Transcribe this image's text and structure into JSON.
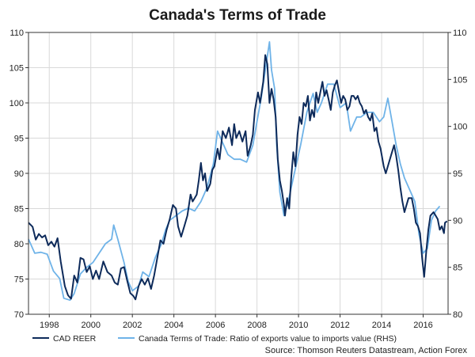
{
  "chart_data": {
    "type": "line",
    "title": "Canada's Terms of Trade",
    "source": "Source: Thomson Reuters Datastream, Action Forex",
    "xlim": [
      1997.0,
      2017.2
    ],
    "x_ticks": [
      "1998",
      "2000",
      "2002",
      "2004",
      "2006",
      "2008",
      "2010",
      "2012",
      "2014",
      "2016"
    ],
    "left_axis": {
      "ylim": [
        70,
        110
      ],
      "ticks": [
        "70",
        "75",
        "80",
        "85",
        "90",
        "95",
        "100",
        "105",
        "110"
      ]
    },
    "right_axis": {
      "ylim": [
        80,
        110
      ],
      "ticks": [
        "80",
        "85",
        "90",
        "95",
        "100",
        "105",
        "110"
      ]
    },
    "grid": "vertical and horizontal, light gray",
    "legend_position": "bottom",
    "colors": {
      "cad_reer": "#0d2a5a",
      "terms_of_trade": "#6fb3e8"
    },
    "series": [
      {
        "name": "CAD REER",
        "axis": "left",
        "points": [
          [
            1997.0,
            83.0
          ],
          [
            1997.2,
            82.4
          ],
          [
            1997.35,
            80.6
          ],
          [
            1997.5,
            81.4
          ],
          [
            1997.65,
            80.9
          ],
          [
            1997.8,
            81.2
          ],
          [
            1997.95,
            79.8
          ],
          [
            1998.1,
            80.3
          ],
          [
            1998.25,
            79.6
          ],
          [
            1998.4,
            80.8
          ],
          [
            1998.55,
            77.5
          ],
          [
            1998.75,
            74.0
          ],
          [
            1998.9,
            72.7
          ],
          [
            1999.05,
            72.2
          ],
          [
            1999.2,
            75.5
          ],
          [
            1999.35,
            74.5
          ],
          [
            1999.5,
            78.0
          ],
          [
            1999.65,
            77.8
          ],
          [
            1999.8,
            76.0
          ],
          [
            1999.95,
            76.8
          ],
          [
            2000.1,
            75.0
          ],
          [
            2000.25,
            76.2
          ],
          [
            2000.4,
            75.0
          ],
          [
            2000.6,
            77.5
          ],
          [
            2000.8,
            76.0
          ],
          [
            2001.0,
            75.5
          ],
          [
            2001.15,
            74.5
          ],
          [
            2001.3,
            74.2
          ],
          [
            2001.45,
            76.5
          ],
          [
            2001.6,
            76.7
          ],
          [
            2001.75,
            74.8
          ],
          [
            2001.9,
            73.0
          ],
          [
            2002.05,
            72.6
          ],
          [
            2002.15,
            72.1
          ],
          [
            2002.3,
            74.0
          ],
          [
            2002.45,
            75.0
          ],
          [
            2002.6,
            74.2
          ],
          [
            2002.75,
            75.1
          ],
          [
            2002.9,
            73.6
          ],
          [
            2003.05,
            75.5
          ],
          [
            2003.2,
            78.0
          ],
          [
            2003.35,
            80.5
          ],
          [
            2003.5,
            80.0
          ],
          [
            2003.65,
            82.0
          ],
          [
            2003.8,
            83.5
          ],
          [
            2003.95,
            85.5
          ],
          [
            2004.1,
            85.0
          ],
          [
            2004.2,
            82.5
          ],
          [
            2004.35,
            81.0
          ],
          [
            2004.5,
            82.5
          ],
          [
            2004.65,
            84.0
          ],
          [
            2004.8,
            87.0
          ],
          [
            2004.9,
            86.0
          ],
          [
            2005.0,
            86.5
          ],
          [
            2005.1,
            87.0
          ],
          [
            2005.2,
            89.0
          ],
          [
            2005.3,
            91.5
          ],
          [
            2005.4,
            89.0
          ],
          [
            2005.5,
            90.0
          ],
          [
            2005.6,
            87.5
          ],
          [
            2005.75,
            88.5
          ],
          [
            2005.85,
            90.5
          ],
          [
            2005.95,
            91.0
          ],
          [
            2006.1,
            93.5
          ],
          [
            2006.2,
            92.0
          ],
          [
            2006.35,
            96.0
          ],
          [
            2006.5,
            95.0
          ],
          [
            2006.65,
            96.5
          ],
          [
            2006.8,
            94.0
          ],
          [
            2006.9,
            97.0
          ],
          [
            2007.0,
            95.0
          ],
          [
            2007.15,
            96.0
          ],
          [
            2007.3,
            94.5
          ],
          [
            2007.45,
            96.0
          ],
          [
            2007.55,
            92.5
          ],
          [
            2007.7,
            94.0
          ],
          [
            2007.8,
            95.5
          ],
          [
            2007.9,
            99.0
          ],
          [
            2008.05,
            101.5
          ],
          [
            2008.15,
            100.0
          ],
          [
            2008.3,
            103.0
          ],
          [
            2008.4,
            106.8
          ],
          [
            2008.5,
            105.5
          ],
          [
            2008.6,
            100.0
          ],
          [
            2008.7,
            102.0
          ],
          [
            2008.8,
            100.5
          ],
          [
            2008.9,
            98.0
          ],
          [
            2009.0,
            92.0
          ],
          [
            2009.1,
            89.0
          ],
          [
            2009.2,
            87.5
          ],
          [
            2009.3,
            85.5
          ],
          [
            2009.35,
            84.0
          ],
          [
            2009.45,
            86.5
          ],
          [
            2009.55,
            85.0
          ],
          [
            2009.65,
            89.5
          ],
          [
            2009.75,
            93.0
          ],
          [
            2009.85,
            91.0
          ],
          [
            2009.95,
            95.5
          ],
          [
            2010.05,
            98.0
          ],
          [
            2010.15,
            97.0
          ],
          [
            2010.25,
            100.0
          ],
          [
            2010.35,
            99.5
          ],
          [
            2010.45,
            101.0
          ],
          [
            2010.55,
            97.5
          ],
          [
            2010.65,
            99.0
          ],
          [
            2010.75,
            98.0
          ],
          [
            2010.85,
            101.5
          ],
          [
            2010.95,
            100.0
          ],
          [
            2011.05,
            101.5
          ],
          [
            2011.15,
            103.0
          ],
          [
            2011.25,
            101.0
          ],
          [
            2011.35,
            101.8
          ],
          [
            2011.45,
            100.5
          ],
          [
            2011.55,
            99.0
          ],
          [
            2011.65,
            101.5
          ],
          [
            2011.75,
            102.5
          ],
          [
            2011.85,
            103.2
          ],
          [
            2011.95,
            101.5
          ],
          [
            2012.05,
            100.0
          ],
          [
            2012.15,
            101.0
          ],
          [
            2012.25,
            100.5
          ],
          [
            2012.35,
            99.0
          ],
          [
            2012.45,
            99.5
          ],
          [
            2012.55,
            101.0
          ],
          [
            2012.65,
            101.0
          ],
          [
            2012.75,
            100.5
          ],
          [
            2012.85,
            101.0
          ],
          [
            2012.95,
            100.0
          ],
          [
            2013.05,
            99.5
          ],
          [
            2013.15,
            98.5
          ],
          [
            2013.25,
            99.0
          ],
          [
            2013.35,
            98.0
          ],
          [
            2013.45,
            97.5
          ],
          [
            2013.55,
            98.5
          ],
          [
            2013.65,
            96.0
          ],
          [
            2013.75,
            96.5
          ],
          [
            2013.85,
            94.5
          ],
          [
            2013.95,
            93.5
          ],
          [
            2014.1,
            91.0
          ],
          [
            2014.2,
            90.0
          ],
          [
            2014.3,
            91.0
          ],
          [
            2014.45,
            92.5
          ],
          [
            2014.6,
            94.0
          ],
          [
            2014.7,
            92.5
          ],
          [
            2014.8,
            90.5
          ],
          [
            2014.9,
            88.0
          ],
          [
            2015.0,
            86.0
          ],
          [
            2015.1,
            84.5
          ],
          [
            2015.2,
            85.5
          ],
          [
            2015.3,
            86.5
          ],
          [
            2015.45,
            86.5
          ],
          [
            2015.55,
            85.0
          ],
          [
            2015.65,
            83.0
          ],
          [
            2015.75,
            82.5
          ],
          [
            2015.85,
            81.5
          ],
          [
            2015.95,
            78.0
          ],
          [
            2016.05,
            75.3
          ],
          [
            2016.15,
            79.0
          ],
          [
            2016.25,
            82.0
          ],
          [
            2016.35,
            84.0
          ],
          [
            2016.5,
            84.5
          ],
          [
            2016.6,
            84.0
          ],
          [
            2016.7,
            83.5
          ],
          [
            2016.8,
            82.0
          ],
          [
            2016.9,
            82.5
          ],
          [
            2017.0,
            81.5
          ],
          [
            2017.05,
            83.0
          ],
          [
            2017.15,
            83.2
          ]
        ]
      },
      {
        "name": "Canada Terms of Trade: Ratio of exports value to imports value (RHS)",
        "axis": "right",
        "points": [
          [
            1997.0,
            88.0
          ],
          [
            1997.3,
            86.5
          ],
          [
            1997.6,
            86.6
          ],
          [
            1997.9,
            86.4
          ],
          [
            1998.2,
            84.6
          ],
          [
            1998.5,
            83.8
          ],
          [
            1998.7,
            81.7
          ],
          [
            1999.0,
            81.5
          ],
          [
            1999.2,
            82.2
          ],
          [
            1999.5,
            84.3
          ],
          [
            1999.8,
            85.0
          ],
          [
            2000.1,
            85.5
          ],
          [
            2000.4,
            86.5
          ],
          [
            2000.7,
            87.5
          ],
          [
            2001.0,
            88.0
          ],
          [
            2001.1,
            89.5
          ],
          [
            2001.3,
            88.0
          ],
          [
            2001.6,
            85.5
          ],
          [
            2001.8,
            83.5
          ],
          [
            2002.0,
            82.5
          ],
          [
            2002.3,
            83.0
          ],
          [
            2002.5,
            84.5
          ],
          [
            2002.8,
            84.0
          ],
          [
            2003.1,
            86.0
          ],
          [
            2003.4,
            87.5
          ],
          [
            2003.6,
            89.0
          ],
          [
            2003.8,
            90.0
          ],
          [
            2004.1,
            90.5
          ],
          [
            2004.4,
            91.0
          ],
          [
            2004.7,
            91.3
          ],
          [
            2005.0,
            91.0
          ],
          [
            2005.3,
            92.0
          ],
          [
            2005.6,
            93.5
          ],
          [
            2005.9,
            96.0
          ],
          [
            2006.1,
            99.5
          ],
          [
            2006.3,
            98.5
          ],
          [
            2006.6,
            97.0
          ],
          [
            2006.9,
            96.5
          ],
          [
            2007.2,
            96.5
          ],
          [
            2007.5,
            96.2
          ],
          [
            2007.8,
            98.0
          ],
          [
            2008.0,
            100.5
          ],
          [
            2008.2,
            103.0
          ],
          [
            2008.4,
            106.0
          ],
          [
            2008.6,
            109.0
          ],
          [
            2008.7,
            106.0
          ],
          [
            2008.85,
            104.0
          ],
          [
            2008.95,
            98.0
          ],
          [
            2009.1,
            93.0
          ],
          [
            2009.3,
            90.5
          ],
          [
            2009.5,
            92.0
          ],
          [
            2009.8,
            95.0
          ],
          [
            2010.1,
            98.0
          ],
          [
            2010.4,
            101.5
          ],
          [
            2010.7,
            103.5
          ],
          [
            2010.9,
            101.5
          ],
          [
            2011.1,
            102.5
          ],
          [
            2011.4,
            104.5
          ],
          [
            2011.7,
            104.5
          ],
          [
            2012.0,
            102.0
          ],
          [
            2012.3,
            102.5
          ],
          [
            2012.5,
            99.5
          ],
          [
            2012.8,
            101.0
          ],
          [
            2013.0,
            101.0
          ],
          [
            2013.3,
            101.5
          ],
          [
            2013.6,
            101.5
          ],
          [
            2013.9,
            100.5
          ],
          [
            2014.1,
            101.0
          ],
          [
            2014.3,
            103.0
          ],
          [
            2014.5,
            100.5
          ],
          [
            2014.7,
            98.0
          ],
          [
            2014.9,
            96.0
          ],
          [
            2015.1,
            94.5
          ],
          [
            2015.4,
            93.0
          ],
          [
            2015.6,
            92.0
          ],
          [
            2015.8,
            88.5
          ],
          [
            2016.0,
            86.5
          ],
          [
            2016.2,
            87.0
          ],
          [
            2016.4,
            90.0
          ],
          [
            2016.6,
            91.0
          ],
          [
            2016.8,
            91.5
          ]
        ]
      }
    ]
  }
}
